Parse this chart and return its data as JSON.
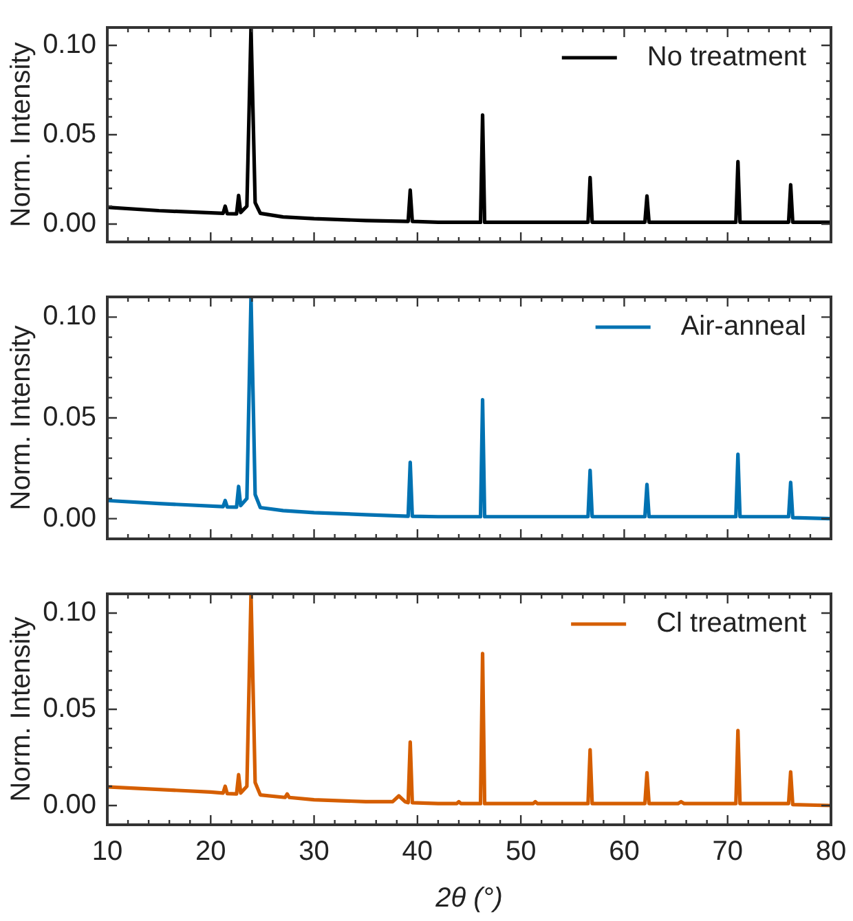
{
  "chart_data": [
    {
      "type": "line",
      "ylabel": "Norm. Intensity",
      "xlim": [
        10,
        80
      ],
      "ylim": [
        -0.01,
        0.11
      ],
      "tick_labels": "y",
      "grid": false,
      "legend": "top right",
      "marker": "none",
      "line_style": "solid",
      "xticks": [
        10,
        {
          "value": 12,
          "label": null
        },
        {
          "value": 14,
          "label": null
        },
        {
          "value": 16,
          "label": null
        },
        {
          "value": 18,
          "label": null
        },
        20,
        {
          "value": 22,
          "label": null
        },
        {
          "value": 24,
          "label": null
        },
        {
          "value": 26,
          "label": null
        },
        {
          "value": 28,
          "label": null
        },
        30,
        {
          "value": 32,
          "label": null
        },
        {
          "value": 34,
          "label": null
        },
        {
          "value": 36,
          "label": null
        },
        {
          "value": 38,
          "label": null
        },
        40,
        {
          "value": 42,
          "label": null
        },
        {
          "value": 44,
          "label": null
        },
        {
          "value": 46,
          "label": null
        },
        {
          "value": 48,
          "label": null
        },
        50,
        {
          "value": 52,
          "label": null
        },
        {
          "value": 54,
          "label": null
        },
        {
          "value": 56,
          "label": null
        },
        {
          "value": 58,
          "label": null
        },
        60,
        {
          "value": 62,
          "label": null
        },
        {
          "value": 64,
          "label": null
        },
        {
          "value": 66,
          "label": null
        },
        {
          "value": 68,
          "label": null
        },
        70,
        {
          "value": 72,
          "label": null
        },
        {
          "value": 74,
          "label": null
        },
        {
          "value": 76,
          "label": null
        },
        {
          "value": 78,
          "label": null
        },
        80
      ],
      "yticks": [
        {
          "value": -0.01,
          "label": null
        },
        {
          "value": 0,
          "label": "0.00"
        },
        {
          "value": 0.01,
          "label": null
        },
        {
          "value": 0.02,
          "label": null
        },
        {
          "value": 0.03,
          "label": null
        },
        {
          "value": 0.04,
          "label": null
        },
        {
          "value": 0.05,
          "label": "0.05"
        },
        {
          "value": 0.06,
          "label": null
        },
        {
          "value": 0.07,
          "label": null
        },
        {
          "value": 0.08,
          "label": null
        },
        {
          "value": 0.09,
          "label": null
        },
        {
          "value": 0.1,
          "label": "0.10"
        },
        {
          "value": 0.11,
          "label": null
        }
      ],
      "series": [
        {
          "name": "No treatment",
          "color": "#000000",
          "x": [
            10,
            15,
            21.2,
            21.4,
            21.6,
            22.5,
            22.7,
            22.9,
            23.5,
            23.9,
            24.3,
            24.8,
            27,
            30,
            35,
            39.1,
            39.3,
            39.5,
            42,
            46.1,
            46.3,
            46.5,
            50,
            56.5,
            56.7,
            56.9,
            62,
            62.2,
            62.4,
            70.8,
            71.0,
            71.2,
            75.9,
            76.1,
            76.3,
            80
          ],
          "values": [
            0.0094,
            0.0075,
            0.006,
            0.01,
            0.0058,
            0.0057,
            0.016,
            0.0065,
            0.01,
            0.11,
            0.012,
            0.006,
            0.004,
            0.003,
            0.002,
            0.0015,
            0.019,
            0.0015,
            0.001,
            0.001,
            0.061,
            0.001,
            0.001,
            0.001,
            0.026,
            0.001,
            0.001,
            0.0157,
            0.001,
            0.001,
            0.035,
            0.001,
            0.001,
            0.022,
            0.001,
            0.001
          ]
        }
      ]
    },
    {
      "type": "line",
      "ylabel": "Norm. Intensity",
      "xlim": [
        10,
        80
      ],
      "ylim": [
        -0.01,
        0.11
      ],
      "tick_labels": "y",
      "grid": false,
      "legend": "top right",
      "marker": "none",
      "line_style": "solid",
      "xticks": [
        10,
        {
          "value": 12,
          "label": null
        },
        {
          "value": 14,
          "label": null
        },
        {
          "value": 16,
          "label": null
        },
        {
          "value": 18,
          "label": null
        },
        20,
        {
          "value": 22,
          "label": null
        },
        {
          "value": 24,
          "label": null
        },
        {
          "value": 26,
          "label": null
        },
        {
          "value": 28,
          "label": null
        },
        30,
        {
          "value": 32,
          "label": null
        },
        {
          "value": 34,
          "label": null
        },
        {
          "value": 36,
          "label": null
        },
        {
          "value": 38,
          "label": null
        },
        40,
        {
          "value": 42,
          "label": null
        },
        {
          "value": 44,
          "label": null
        },
        {
          "value": 46,
          "label": null
        },
        {
          "value": 48,
          "label": null
        },
        50,
        {
          "value": 52,
          "label": null
        },
        {
          "value": 54,
          "label": null
        },
        {
          "value": 56,
          "label": null
        },
        {
          "value": 58,
          "label": null
        },
        60,
        {
          "value": 62,
          "label": null
        },
        {
          "value": 64,
          "label": null
        },
        {
          "value": 66,
          "label": null
        },
        {
          "value": 68,
          "label": null
        },
        70,
        {
          "value": 72,
          "label": null
        },
        {
          "value": 74,
          "label": null
        },
        {
          "value": 76,
          "label": null
        },
        {
          "value": 78,
          "label": null
        },
        80
      ],
      "yticks": [
        {
          "value": -0.01,
          "label": null
        },
        {
          "value": 0,
          "label": "0.00"
        },
        {
          "value": 0.01,
          "label": null
        },
        {
          "value": 0.02,
          "label": null
        },
        {
          "value": 0.03,
          "label": null
        },
        {
          "value": 0.04,
          "label": null
        },
        {
          "value": 0.05,
          "label": "0.05"
        },
        {
          "value": 0.06,
          "label": null
        },
        {
          "value": 0.07,
          "label": null
        },
        {
          "value": 0.08,
          "label": null
        },
        {
          "value": 0.09,
          "label": null
        },
        {
          "value": 0.1,
          "label": "0.10"
        },
        {
          "value": 0.11,
          "label": null
        }
      ],
      "series": [
        {
          "name": "Air-anneal",
          "color": "#0072b2",
          "x": [
            10,
            15,
            21.2,
            21.4,
            21.6,
            22.5,
            22.7,
            22.9,
            23.5,
            23.9,
            24.3,
            24.8,
            27,
            30,
            35,
            39.1,
            39.3,
            39.5,
            42,
            46.1,
            46.3,
            46.5,
            50,
            56.5,
            56.7,
            56.9,
            62,
            62.2,
            62.4,
            70.8,
            71.0,
            71.2,
            75.9,
            76.1,
            76.3,
            80
          ],
          "values": [
            0.009,
            0.0075,
            0.006,
            0.009,
            0.0058,
            0.0057,
            0.016,
            0.0065,
            0.01,
            0.11,
            0.012,
            0.0055,
            0.004,
            0.003,
            0.002,
            0.0012,
            0.028,
            0.0012,
            0.001,
            0.001,
            0.059,
            0.001,
            0.001,
            0.001,
            0.024,
            0.001,
            0.001,
            0.017,
            0.001,
            0.001,
            0.032,
            0.001,
            0.001,
            0.018,
            0.0005,
            0.0
          ]
        }
      ]
    },
    {
      "type": "line",
      "xlabel": "2θ (°)",
      "ylabel": "Norm. Intensity",
      "xlim": [
        10,
        80
      ],
      "ylim": [
        -0.01,
        0.11
      ],
      "grid": false,
      "legend": "top right",
      "marker": "none",
      "line_style": "solid",
      "xticks": [
        10,
        {
          "value": 12,
          "label": null
        },
        {
          "value": 14,
          "label": null
        },
        {
          "value": 16,
          "label": null
        },
        {
          "value": 18,
          "label": null
        },
        20,
        {
          "value": 22,
          "label": null
        },
        {
          "value": 24,
          "label": null
        },
        {
          "value": 26,
          "label": null
        },
        {
          "value": 28,
          "label": null
        },
        30,
        {
          "value": 32,
          "label": null
        },
        {
          "value": 34,
          "label": null
        },
        {
          "value": 36,
          "label": null
        },
        {
          "value": 38,
          "label": null
        },
        40,
        {
          "value": 42,
          "label": null
        },
        {
          "value": 44,
          "label": null
        },
        {
          "value": 46,
          "label": null
        },
        {
          "value": 48,
          "label": null
        },
        50,
        {
          "value": 52,
          "label": null
        },
        {
          "value": 54,
          "label": null
        },
        {
          "value": 56,
          "label": null
        },
        {
          "value": 58,
          "label": null
        },
        60,
        {
          "value": 62,
          "label": null
        },
        {
          "value": 64,
          "label": null
        },
        {
          "value": 66,
          "label": null
        },
        {
          "value": 68,
          "label": null
        },
        70,
        {
          "value": 72,
          "label": null
        },
        {
          "value": 74,
          "label": null
        },
        {
          "value": 76,
          "label": null
        },
        {
          "value": 78,
          "label": null
        },
        80
      ],
      "yticks": [
        {
          "value": -0.01,
          "label": null
        },
        {
          "value": 0,
          "label": "0.00"
        },
        {
          "value": 0.01,
          "label": null
        },
        {
          "value": 0.02,
          "label": null
        },
        {
          "value": 0.03,
          "label": null
        },
        {
          "value": 0.04,
          "label": null
        },
        {
          "value": 0.05,
          "label": "0.05"
        },
        {
          "value": 0.06,
          "label": null
        },
        {
          "value": 0.07,
          "label": null
        },
        {
          "value": 0.08,
          "label": null
        },
        {
          "value": 0.09,
          "label": null
        },
        {
          "value": 0.1,
          "label": "0.10"
        },
        {
          "value": 0.11,
          "label": null
        }
      ],
      "series": [
        {
          "name": "Cl treatment",
          "color": "#d55e00",
          "x": [
            10,
            20,
            21.2,
            21.4,
            21.6,
            22.5,
            22.7,
            22.9,
            23.5,
            23.9,
            24.3,
            24.8,
            27.2,
            27.4,
            27.6,
            30,
            35,
            37.6,
            38.2,
            38.8,
            39.1,
            39.3,
            39.5,
            42,
            43.8,
            44,
            44.2,
            46.1,
            46.3,
            46.5,
            51.2,
            51.4,
            51.6,
            56.5,
            56.7,
            56.9,
            62,
            62.2,
            62.4,
            65.2,
            65.5,
            65.8,
            70.8,
            71.0,
            71.2,
            75.9,
            76.1,
            76.3,
            80
          ],
          "values": [
            0.0097,
            0.007,
            0.0065,
            0.01,
            0.0062,
            0.006,
            0.016,
            0.0065,
            0.01,
            0.11,
            0.012,
            0.0055,
            0.0042,
            0.006,
            0.0042,
            0.003,
            0.002,
            0.002,
            0.005,
            0.002,
            0.0015,
            0.033,
            0.0015,
            0.001,
            0.001,
            0.002,
            0.001,
            0.001,
            0.079,
            0.001,
            0.001,
            0.002,
            0.001,
            0.001,
            0.029,
            0.001,
            0.001,
            0.017,
            0.001,
            0.001,
            0.002,
            0.001,
            0.001,
            0.039,
            0.001,
            0.001,
            0.0175,
            0.0005,
            0.0
          ]
        }
      ]
    }
  ]
}
